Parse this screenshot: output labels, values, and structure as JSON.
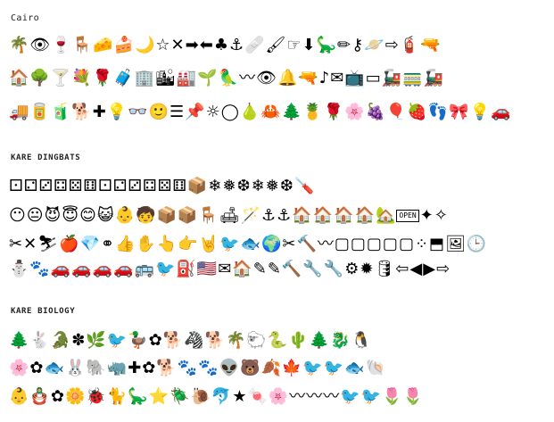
{
  "sections": [
    {
      "title": "Cairo",
      "rows": [
        [
          "🌴",
          "👁",
          "🍷",
          "🪑",
          "🧀",
          "🍰",
          "🌙",
          "☆",
          "✕",
          "➡",
          "⬅",
          "♣",
          "⚓",
          "🩹",
          "🖌",
          "☞",
          "⬇",
          "🦕",
          "✏",
          "⚷",
          "🪐",
          "⇨",
          "🧯",
          "🔫"
        ],
        [
          "🏠",
          "🌳",
          "🍸",
          "💐",
          "🌹",
          "🧳",
          "🏢",
          "🏙",
          "🏭",
          "🌱",
          "🦜",
          "〰",
          "👁",
          "🔔",
          "🔫",
          "♪",
          "✉",
          "📺",
          "▭",
          "🚂",
          "🚃",
          "🚂"
        ],
        [
          "🚚",
          "🥫",
          "🧃",
          "🐕",
          "✚",
          "💡",
          "👓",
          "🙂",
          "☰",
          "📌",
          "☼",
          "◯",
          "🍐",
          "🦀",
          "🌲",
          "🍍",
          "🌹",
          "🌸",
          "🍇",
          "🎈",
          "🍓",
          "👣",
          "🎀",
          "💡",
          "🚗"
        ]
      ]
    },
    {
      "title": "KARE DINGBATS",
      "rows": [
        [
          "⚀",
          "⚁",
          "⚂",
          "⚃",
          "⚄",
          "⚅",
          "⚀",
          "⚁",
          "⚂",
          "⚃",
          "⚄",
          "⚅",
          "📦",
          "❄",
          "❅",
          "❆",
          "❄",
          "❅",
          "❆",
          "🪛"
        ],
        [
          "😶",
          "😐",
          "😈",
          "😇",
          "😊",
          "😺",
          "👶",
          "🧒",
          "📦",
          "📦",
          "🪑",
          "🛋",
          "🪄",
          "⚓",
          "⚓",
          "🏠",
          "🏠",
          "🏠",
          "🏠",
          "🏡",
          "OPEN",
          "✦",
          "✧"
        ],
        [
          "✂",
          "✕",
          "⛷",
          "🍎",
          "💎",
          "⚭",
          "👍",
          "✋",
          "👆",
          "👉",
          "🤘",
          "🐦",
          "🐟",
          "🌍",
          "✂",
          "🔨",
          "〰",
          "▢",
          "▢",
          "▢",
          "▢",
          "▢",
          "⁘",
          "⬒",
          "🖼",
          "🕒"
        ],
        [
          "⛄",
          "🐾",
          "🚗",
          "🚗",
          "🚗",
          "🚗",
          "🚌",
          "🐦",
          "⛽",
          "🇺🇸",
          "✉",
          "🏠",
          "✎",
          "✎",
          "🔨",
          "🔧",
          "🔧",
          "⚙",
          "✹",
          "🛢",
          "⇦",
          "◀",
          "▶",
          "⇨"
        ]
      ]
    },
    {
      "title": "KARE BIOLOGY",
      "rows": [
        [
          "🌲",
          "🐇",
          "🐊",
          "✽",
          "🌿",
          "🐦",
          "🦆",
          "✿",
          "🐕",
          "🦓",
          "🐕",
          "🌴",
          "🐑",
          "🐍",
          "🌵",
          "🌲",
          "🐉",
          "🐧"
        ],
        [
          "🌸",
          "✿",
          "🐟",
          "🐰",
          "🐘",
          "🦏",
          "✚",
          "✿",
          "🐕",
          "🐾",
          "🐾",
          "👽",
          "🐻",
          "🍂",
          "🍁",
          "🐦",
          "🐦",
          "🐟",
          "🐚"
        ],
        [
          "👶",
          "🪆",
          "✿",
          "🌼",
          "🐞",
          "🐈",
          "🦕",
          "⭐",
          "🪲",
          "🐌",
          "🐬",
          "★",
          "🍬",
          "🌸",
          "〰",
          "〰",
          "〰",
          "🐦",
          "🐦",
          "🌷",
          "🌷"
        ]
      ]
    }
  ]
}
